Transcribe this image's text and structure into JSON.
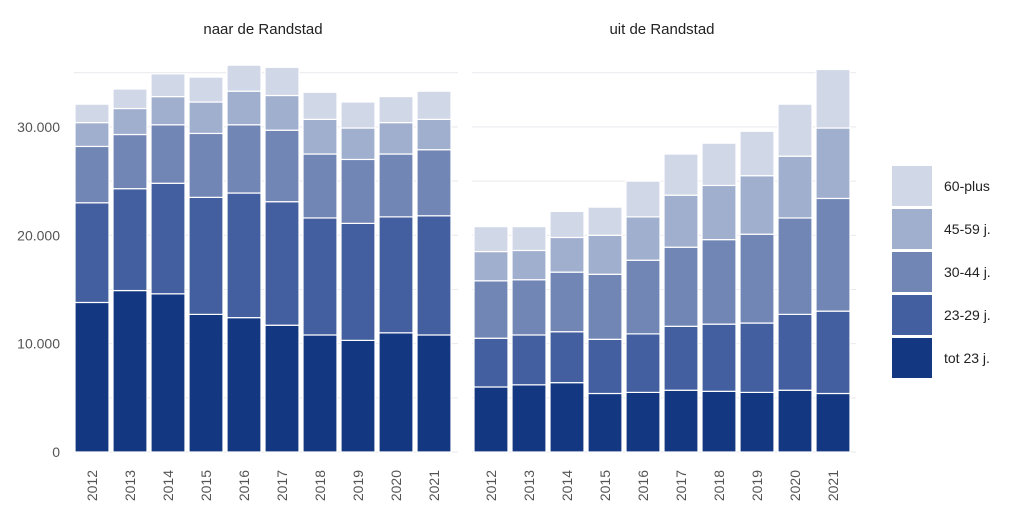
{
  "chart_data": [
    {
      "type": "bar",
      "stacked": true,
      "title": "naar de Randstad",
      "categories": [
        "2012",
        "2013",
        "2014",
        "2015",
        "2016",
        "2017",
        "2018",
        "2019",
        "2020",
        "2021"
      ],
      "series": [
        {
          "name": "tot 23 j.",
          "values": [
            13800,
            14900,
            14600,
            12700,
            12400,
            11700,
            10800,
            10300,
            11000,
            10800
          ]
        },
        {
          "name": "23-29 j.",
          "values": [
            9200,
            9400,
            10200,
            10800,
            11500,
            11400,
            10800,
            10800,
            10700,
            11000
          ]
        },
        {
          "name": "30-44 j.",
          "values": [
            5200,
            5000,
            5400,
            5900,
            6300,
            6600,
            5900,
            5900,
            5800,
            6100
          ]
        },
        {
          "name": "45-59 j.",
          "values": [
            2200,
            2400,
            2600,
            2900,
            3100,
            3200,
            3200,
            2900,
            2900,
            2800
          ]
        },
        {
          "name": "60-plus",
          "values": [
            1700,
            1800,
            2100,
            2300,
            2400,
            2600,
            2500,
            2400,
            2400,
            2600
          ]
        }
      ],
      "ylim": [
        0,
        35900
      ],
      "yticks": [
        0,
        10000,
        20000,
        30000
      ],
      "ytick_labels": [
        "0",
        "10.000",
        "20.000",
        "30.000"
      ],
      "grid": true
    },
    {
      "type": "bar",
      "stacked": true,
      "title": "uit de Randstad",
      "categories": [
        "2012",
        "2013",
        "2014",
        "2015",
        "2016",
        "2017",
        "2018",
        "2019",
        "2020",
        "2021"
      ],
      "series": [
        {
          "name": "tot 23 j.",
          "values": [
            6000,
            6200,
            6400,
            5400,
            5500,
            5700,
            5600,
            5500,
            5700,
            5400
          ]
        },
        {
          "name": "23-29 j.",
          "values": [
            4500,
            4600,
            4700,
            5000,
            5400,
            5900,
            6200,
            6400,
            7000,
            7600
          ]
        },
        {
          "name": "30-44 j.",
          "values": [
            5300,
            5100,
            5500,
            6000,
            6800,
            7300,
            7800,
            8200,
            8900,
            10400
          ]
        },
        {
          "name": "45-59 j.",
          "values": [
            2700,
            2700,
            3200,
            3600,
            4000,
            4800,
            5000,
            5400,
            5700,
            6500
          ]
        },
        {
          "name": "60-plus",
          "values": [
            2300,
            2200,
            2400,
            2600,
            3300,
            3800,
            3900,
            4100,
            4800,
            5400
          ]
        }
      ],
      "ylim": [
        0,
        35900
      ],
      "grid": true
    }
  ],
  "legend": {
    "placement": "right",
    "entries": [
      {
        "name": "60-plus",
        "color": "#d0d7e7"
      },
      {
        "name": "45-59 j.",
        "color": "#a1afcf"
      },
      {
        "name": "30-44 j.",
        "color": "#7286b6"
      },
      {
        "name": "23-29 j.",
        "color": "#435f9f"
      },
      {
        "name": "tot 23 j.",
        "color": "#143782"
      }
    ]
  },
  "colors": {
    "tot 23 j.": "#143782",
    "23-29 j.": "#435f9f",
    "30-44 j.": "#7286b6",
    "45-59 j.": "#a1afcf",
    "60-plus": "#d0d7e7"
  }
}
